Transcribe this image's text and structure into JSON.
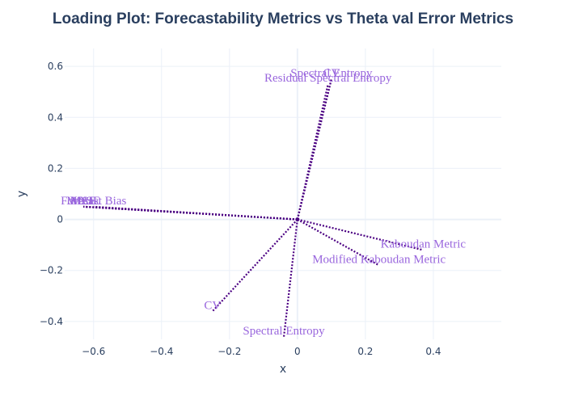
{
  "chart_data": {
    "type": "scatter",
    "title": "Loading Plot: Forecastability Metrics vs Theta val Error Metrics",
    "xlabel": "x",
    "ylabel": "y",
    "xlim": [
      -0.685,
      0.6
    ],
    "ylim": [
      -0.47,
      0.67
    ],
    "xticks": [
      -0.6,
      -0.4,
      -0.2,
      0,
      0.2,
      0.4
    ],
    "xtick_labels": [
      "−0.6",
      "−0.4",
      "−0.2",
      "0",
      "0.2",
      "0.4"
    ],
    "yticks": [
      -0.4,
      -0.2,
      0,
      0.2,
      0.4,
      0.6
    ],
    "ytick_labels": [
      "−0.4",
      "−0.2",
      "0",
      "0.2",
      "0.4",
      "0.6"
    ],
    "grid": true,
    "line_color": "#4b0082",
    "label_color": "#9966dd",
    "vectors": [
      {
        "label": "Residual Spectral Entropy",
        "x": 0.09,
        "y": 0.53
      },
      {
        "label": "CV",
        "x": 0.1,
        "y": 0.55
      },
      {
        "label": "Spectral Entropy",
        "x": 0.1,
        "y": 0.55
      },
      {
        "label": "MAE",
        "x": -0.63,
        "y": 0.05
      },
      {
        "label": "MSE",
        "x": -0.63,
        "y": 0.05
      },
      {
        "label": "MASE",
        "x": -0.63,
        "y": 0.05
      },
      {
        "label": "Forecast Bias",
        "x": -0.6,
        "y": 0.05
      },
      {
        "label": "Kaboudan Metric",
        "x": 0.37,
        "y": -0.12
      },
      {
        "label": "Modified Kaboudan Metric",
        "x": 0.24,
        "y": -0.18
      },
      {
        "label": "CV",
        "x": -0.25,
        "y": -0.36
      },
      {
        "label": "Spectral Entropy",
        "x": -0.04,
        "y": -0.46
      }
    ]
  }
}
